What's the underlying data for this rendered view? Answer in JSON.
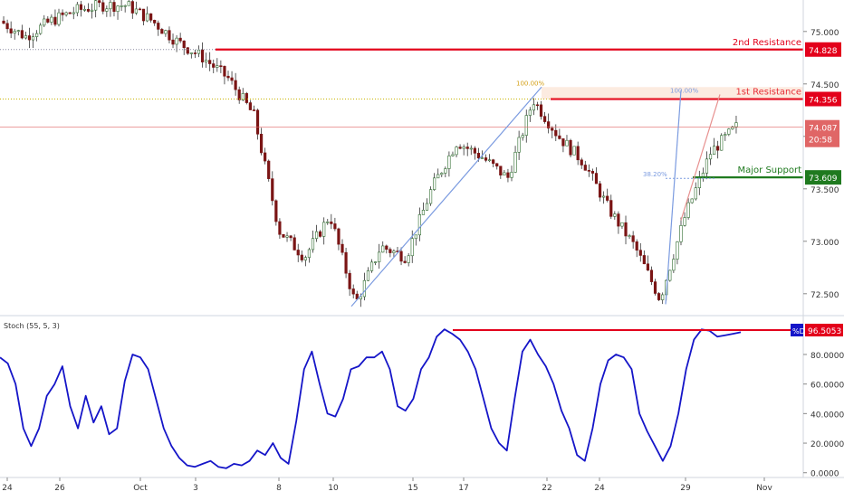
{
  "chart_data": {
    "type": "candlestick",
    "price_axis": {
      "ticks": [
        "75.000",
        "74.500",
        "74.000",
        "73.500",
        "73.000",
        "72.500"
      ],
      "ylim": [
        72.3,
        75.3
      ]
    },
    "time_axis": {
      "ticks": [
        "24",
        "26",
        "Oct",
        "3",
        "8",
        "10",
        "15",
        "17",
        "22",
        "24",
        "29",
        "Nov"
      ]
    },
    "levels": [
      {
        "name": "2nd Resistance",
        "value": 74.828,
        "label": "74.828",
        "color": "#e3001b"
      },
      {
        "name": "1st Resistance",
        "value": 74.356,
        "label": "74.356",
        "color": "#e3001b"
      },
      {
        "name": "Major Support",
        "value": 73.609,
        "label": "73.609",
        "color": "#1f7a1f"
      }
    ],
    "last_price": {
      "label": "74.087",
      "value": 74.087,
      "countdown": "20:58",
      "color": "#e06666"
    },
    "fib_labels": [
      "100.00%",
      "100.00%",
      "38.20%"
    ],
    "price_path": [
      [
        "24",
        75.1
      ],
      [
        "25",
        74.95
      ],
      [
        "26",
        75.1
      ],
      [
        "27",
        75.2
      ],
      [
        "28",
        75.25
      ],
      [
        "29",
        75.25
      ],
      [
        "Oct 1",
        75.1
      ],
      [
        "Oct 2",
        74.9
      ],
      [
        "Oct 3",
        74.75
      ],
      [
        "Oct 4",
        74.55
      ],
      [
        "Oct 5",
        74.2
      ],
      [
        "Oct 8",
        73.1
      ],
      [
        "Oct 9",
        72.85
      ],
      [
        "Oct 10",
        73.25
      ],
      [
        "Oct 11",
        72.4
      ],
      [
        "Oct 12",
        72.95
      ],
      [
        "Oct 15",
        72.85
      ],
      [
        "Oct 16",
        73.5
      ],
      [
        "Oct 17",
        73.95
      ],
      [
        "Oct 18",
        73.8
      ],
      [
        "Oct 19",
        73.6
      ],
      [
        "Oct 22",
        74.35
      ],
      [
        "Oct 23",
        74.0
      ],
      [
        "Oct 24",
        73.75
      ],
      [
        "Oct 25",
        73.3
      ],
      [
        "Oct 26",
        72.95
      ],
      [
        "Oct 29",
        72.45
      ],
      [
        "Oct 30",
        73.25
      ],
      [
        "Oct 31",
        73.85
      ],
      [
        "Nov 1",
        74.09
      ]
    ],
    "stoch": {
      "label": "Stoch (55, 5, 3)",
      "ticks": [
        "80.0000",
        "60.0000",
        "40.0000",
        "20.0000",
        "0.0000"
      ],
      "ylim": [
        -2,
        102
      ],
      "level": {
        "value": 96.5053,
        "label": "96.5053",
        "tag": "%D"
      },
      "values": [
        78,
        74,
        60,
        30,
        18,
        30,
        52,
        60,
        72,
        45,
        30,
        52,
        34,
        45,
        26,
        30,
        62,
        80,
        78,
        70,
        50,
        30,
        18,
        10,
        5,
        4,
        6,
        8,
        4,
        3,
        6,
        5,
        8,
        15,
        12,
        20,
        10,
        6,
        35,
        70,
        82,
        60,
        40,
        38,
        50,
        70,
        72,
        78,
        78,
        82,
        70,
        45,
        42,
        50,
        70,
        78,
        92,
        97,
        94,
        90,
        82,
        70,
        50,
        30,
        20,
        15,
        50,
        82,
        90,
        80,
        72,
        60,
        42,
        30,
        12,
        8,
        30,
        60,
        76,
        80,
        78,
        70,
        40,
        28,
        18,
        8,
        18,
        40,
        70,
        90,
        97,
        96,
        92,
        93,
        94,
        95
      ]
    }
  }
}
